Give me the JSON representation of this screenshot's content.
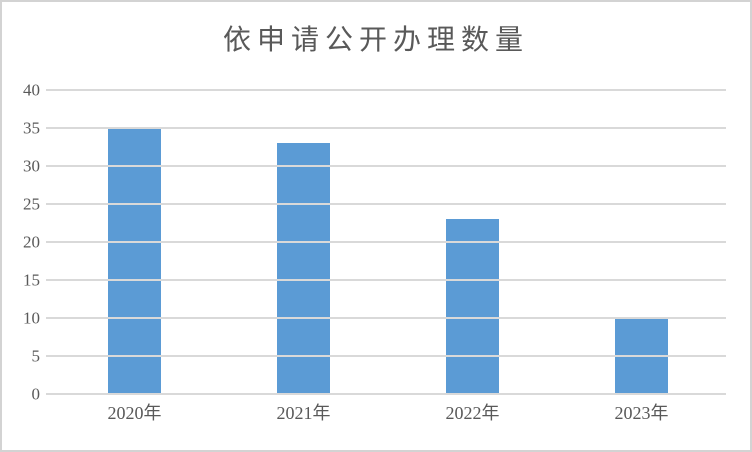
{
  "chart_data": {
    "type": "bar",
    "title": "依申请公开办理数量",
    "categories": [
      "2020年",
      "2021年",
      "2022年",
      "2023年"
    ],
    "values": [
      35,
      33,
      23,
      10
    ],
    "xlabel": "",
    "ylabel": "",
    "ylim": [
      0,
      40
    ],
    "yticks": [
      0,
      5,
      10,
      15,
      20,
      25,
      30,
      35,
      40
    ],
    "grid": true,
    "legend": false,
    "colors": {
      "bar": "#5b9bd5",
      "gridline": "#d9d9d9",
      "text": "#595959",
      "frame_border": "#d3d3d3",
      "background": "#ffffff"
    }
  }
}
